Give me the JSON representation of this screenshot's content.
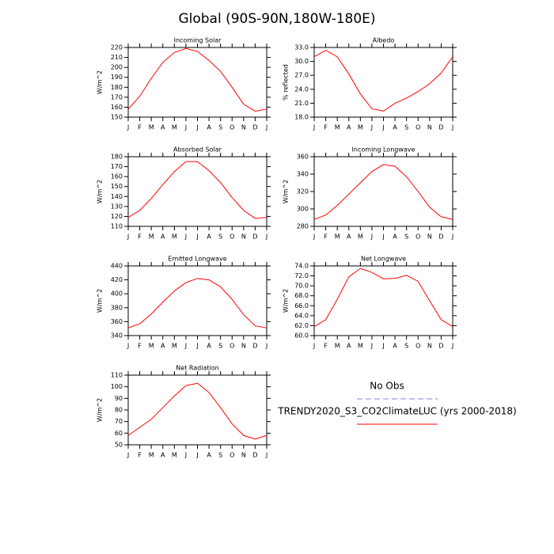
{
  "title": "Global (90S-90N,180W-180E)",
  "legend": [
    {
      "name": "No Obs",
      "color": "#7f7fff",
      "dashed": true
    },
    {
      "name": "TRENDY2020_S3_CO2ClimateLUC (yrs 2000-2018)",
      "color": "#ff0000",
      "dashed": false
    }
  ],
  "chart_data": [
    {
      "type": "line",
      "title": "Incoming Solar",
      "ylabel": "W/m^2",
      "categories": [
        "J",
        "F",
        "M",
        "A",
        "M",
        "J",
        "J",
        "A",
        "S",
        "O",
        "N",
        "D",
        "J"
      ],
      "series": [
        {
          "color": "#ff0000",
          "values": [
            158,
            171,
            189,
            205,
            215,
            219,
            216,
            207,
            196,
            180,
            163,
            156,
            158
          ]
        }
      ],
      "ylim": [
        150,
        220
      ],
      "yticks": [
        150,
        160,
        170,
        180,
        190,
        200,
        210,
        220
      ]
    },
    {
      "type": "line",
      "title": "Albedo",
      "ylabel": "% reflected",
      "categories": [
        "J",
        "F",
        "M",
        "A",
        "M",
        "J",
        "J",
        "A",
        "S",
        "O",
        "N",
        "D",
        "J"
      ],
      "series": [
        {
          "color": "#ff0000",
          "values": [
            31.0,
            32.4,
            31.0,
            27.3,
            23.0,
            19.8,
            19.3,
            21.0,
            22.1,
            23.5,
            25.2,
            27.5,
            31.0
          ]
        }
      ],
      "ylim": [
        18,
        33
      ],
      "yticks": [
        {
          "value": 18,
          "label": "18.0"
        },
        {
          "value": 21,
          "label": "21.0"
        },
        {
          "value": 24,
          "label": "24.0"
        },
        {
          "value": 27,
          "label": "27.0"
        },
        {
          "value": 30,
          "label": "30.0"
        },
        {
          "value": 33,
          "label": "33.0"
        }
      ]
    },
    {
      "type": "line",
      "title": "Absorbed Solar",
      "ylabel": "W/m^2",
      "categories": [
        "J",
        "F",
        "M",
        "A",
        "M",
        "J",
        "J",
        "A",
        "S",
        "O",
        "N",
        "D",
        "J"
      ],
      "series": [
        {
          "color": "#ff0000",
          "values": [
            119,
            126,
            138,
            152,
            165,
            175,
            175,
            166,
            154,
            139,
            126,
            118,
            119
          ]
        }
      ],
      "ylim": [
        110,
        180
      ],
      "yticks": [
        110,
        120,
        130,
        140,
        150,
        160,
        170,
        180
      ]
    },
    {
      "type": "line",
      "title": "Incoming Longwave",
      "ylabel": "W/m^2",
      "categories": [
        "J",
        "F",
        "M",
        "A",
        "M",
        "J",
        "J",
        "A",
        "S",
        "O",
        "N",
        "D",
        "J"
      ],
      "series": [
        {
          "color": "#ff0000",
          "values": [
            288,
            293,
            304,
            317,
            330,
            343,
            351,
            349,
            337,
            320,
            302,
            291,
            288
          ]
        }
      ],
      "ylim": [
        280,
        360
      ],
      "yticks": [
        280,
        300,
        320,
        340,
        360
      ]
    },
    {
      "type": "line",
      "title": "Emitted Longwave",
      "ylabel": "W/m^2",
      "categories": [
        "J",
        "F",
        "M",
        "A",
        "M",
        "J",
        "J",
        "A",
        "S",
        "O",
        "N",
        "D",
        "J"
      ],
      "series": [
        {
          "color": "#ff0000",
          "values": [
            351,
            357,
            371,
            388,
            404,
            416,
            422,
            420,
            410,
            392,
            370,
            354,
            351
          ]
        }
      ],
      "ylim": [
        340,
        440
      ],
      "yticks": [
        340,
        360,
        380,
        400,
        420,
        440
      ]
    },
    {
      "type": "line",
      "title": "Net Longwave",
      "ylabel": "W/m^2",
      "categories": [
        "J",
        "F",
        "M",
        "A",
        "M",
        "J",
        "J",
        "A",
        "S",
        "O",
        "N",
        "D",
        "J"
      ],
      "series": [
        {
          "color": "#ff0000",
          "values": [
            61.8,
            63.2,
            67.3,
            71.8,
            73.5,
            72.7,
            71.4,
            71.5,
            72.1,
            70.9,
            67.0,
            63.2,
            61.8
          ]
        }
      ],
      "ylim": [
        60,
        74
      ],
      "yticks": [
        {
          "value": 60,
          "label": "60.0"
        },
        {
          "value": 62,
          "label": "62.0"
        },
        {
          "value": 64,
          "label": "64.0"
        },
        {
          "value": 66,
          "label": "66.0"
        },
        {
          "value": 68,
          "label": "68.0"
        },
        {
          "value": 70,
          "label": "70.0"
        },
        {
          "value": 72,
          "label": "72.0"
        },
        {
          "value": 74,
          "label": "74.0"
        }
      ]
    },
    {
      "type": "line",
      "title": "Net Radiation",
      "ylabel": "W/m^2",
      "categories": [
        "J",
        "F",
        "M",
        "A",
        "M",
        "J",
        "J",
        "A",
        "S",
        "O",
        "N",
        "D",
        "J"
      ],
      "series": [
        {
          "color": "#ff0000",
          "values": [
            58,
            65,
            72,
            82,
            92,
            101,
            103,
            95,
            82,
            68,
            58,
            55,
            58
          ]
        }
      ],
      "ylim": [
        50,
        110
      ],
      "yticks": [
        50,
        60,
        70,
        80,
        90,
        100,
        110
      ]
    }
  ]
}
